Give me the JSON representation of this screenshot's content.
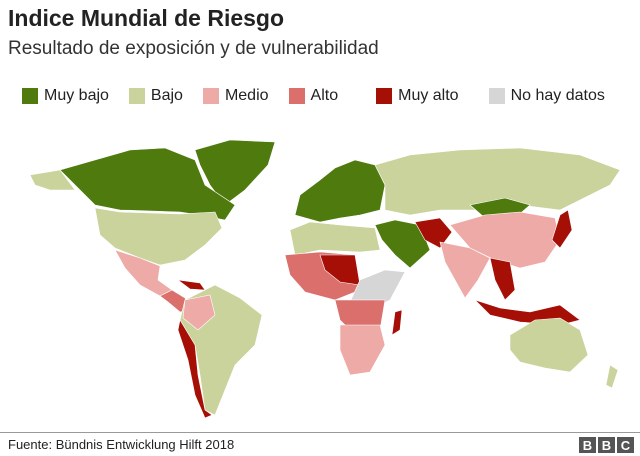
{
  "header": {
    "title": "Indice Mundial de Riesgo",
    "subtitle": "Resultado de exposición y de vulnerabilidad"
  },
  "legend": [
    {
      "label": "Muy bajo",
      "color": "#4f7a0e"
    },
    {
      "label": "Bajo",
      "color": "#c9d39b"
    },
    {
      "label": "Medio",
      "color": "#eeaaa6"
    },
    {
      "label": "Alto",
      "color": "#db6f6c"
    },
    {
      "label": "Muy alto",
      "color": "#a50f06"
    },
    {
      "label": "No hay datos",
      "color": "#d6d6d6"
    }
  ],
  "footer": {
    "source": "Fuente:  Bündnis Entwicklung Hilft 2018",
    "logo": "BBC"
  }
}
